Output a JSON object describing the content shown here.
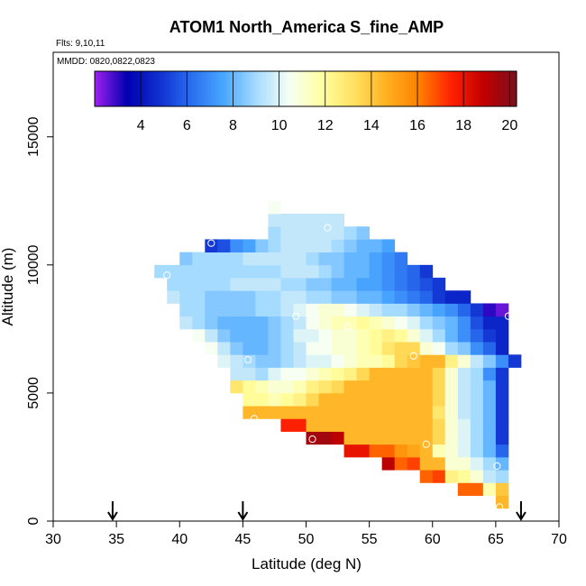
{
  "chart_data": {
    "type": "heatmap",
    "title": "ATOM1 North_America S_fine_AMP",
    "flights_label": "Flts: 9,10,11",
    "dates_label": "MMDD: 0820,0822,0823",
    "xlabel": "Latitude (deg N)",
    "ylabel": "Altitude (m)",
    "xlim": [
      30,
      70
    ],
    "ylim": [
      0,
      18300
    ],
    "x_ticks": [
      "30",
      "35",
      "40",
      "45",
      "50",
      "55",
      "60",
      "65",
      "70"
    ],
    "y_ticks": [
      "0",
      "5000",
      "10000",
      "15000"
    ],
    "colorbar": {
      "range": [
        2,
        20.3
      ],
      "ticks": [
        "4",
        "6",
        "8",
        "10",
        "12",
        "14",
        "16",
        "18",
        "20"
      ],
      "colors": [
        "#a020f0",
        "#0000b0",
        "#1030d0",
        "#2a70f0",
        "#4aa8ff",
        "#a8dcff",
        "#f6fff4",
        "#ffffa0",
        "#ffe060",
        "#ffb020",
        "#ff8000",
        "#ff2000",
        "#c00000",
        "#7a1020"
      ]
    },
    "cell_size": {
      "lat": 1.0,
      "alt": 500
    },
    "row_bottom_altitudes": [
      500,
      1000,
      1500,
      2000,
      2500,
      3000,
      3500,
      4000,
      4500,
      5000,
      5500,
      6000,
      6500,
      7000,
      7500,
      8000,
      8500,
      9000,
      9500,
      10000,
      10500,
      11000,
      11500,
      12000
    ],
    "rows": [
      {
        "lat_start": 65,
        "values": [
          14.5
        ]
      },
      {
        "lat_start": 62,
        "values": [
          16.5,
          16.5,
          11.6,
          14.0
        ]
      },
      {
        "lat_start": 59,
        "values": [
          16.5,
          17.0,
          12.5,
          12.0,
          11.0,
          9.5,
          9.0
        ]
      },
      {
        "lat_start": 56,
        "values": [
          19.0,
          16.5,
          17.0,
          14.5,
          14.5,
          11.0,
          11.0,
          10.0,
          9.0,
          8.0
        ]
      },
      {
        "lat_start": 53,
        "values": [
          18.0,
          18.0,
          16.5,
          16.5,
          15.5,
          15.0,
          14.5,
          11.5,
          11.0,
          10.0,
          9.0,
          8.0,
          6.0
        ]
      },
      {
        "lat_start": 50,
        "values": [
          19.5,
          19.5,
          19.0,
          14.5,
          14.5,
          14.5,
          14.5,
          14.5,
          14.5,
          14.5,
          13.5,
          11.0,
          10.0,
          9.0,
          8.0,
          5.0
        ]
      },
      {
        "lat_start": 48,
        "values": [
          17.5,
          17.5,
          14.5,
          14.5,
          14.5,
          14.5,
          14.5,
          14.5,
          14.5,
          14.5,
          14.5,
          14.5,
          13.5,
          11.0,
          10.0,
          9.0,
          8.0,
          5.0
        ]
      },
      {
        "lat_start": 45,
        "values": [
          14.5,
          14.5,
          14.5,
          14.5,
          14.5,
          14.5,
          14.5,
          14.5,
          14.5,
          14.5,
          14.5,
          14.5,
          14.5,
          14.5,
          14.5,
          13.0,
          11.0,
          9.5,
          9.0,
          8.0,
          5.0
        ]
      },
      {
        "lat_start": 45,
        "values": [
          12.0,
          12.0,
          11.5,
          12.0,
          12.5,
          13.5,
          14.5,
          14.5,
          14.5,
          14.5,
          14.5,
          14.5,
          14.5,
          14.5,
          14.5,
          13.5,
          11.0,
          9.5,
          9.0,
          8.0,
          5.0
        ]
      },
      {
        "lat_start": 44,
        "values": [
          13.0,
          12.0,
          11.5,
          11.0,
          11.0,
          11.5,
          12.5,
          13.0,
          13.5,
          14.5,
          14.5,
          14.5,
          14.5,
          14.5,
          14.5,
          14.5,
          13.5,
          11.0,
          9.5,
          9.0,
          8.0,
          5.0
        ]
      },
      {
        "lat_start": 44,
        "values": [
          9.5,
          9.5,
          9.0,
          10.0,
          10.5,
          10.5,
          11.0,
          11.5,
          12.0,
          12.5,
          13.5,
          14.5,
          14.5,
          14.5,
          14.5,
          14.5,
          13.5,
          11.0,
          9.5,
          9.0,
          7.0,
          5.0
        ]
      },
      {
        "lat_start": 43,
        "values": [
          10.0,
          9.5,
          9.0,
          8.5,
          8.5,
          9.0,
          9.5,
          10.0,
          10.0,
          10.5,
          11.0,
          11.5,
          11.5,
          12.0,
          13.5,
          14.0,
          14.5,
          14.5,
          12.5,
          11.0,
          9.5,
          8.5,
          7.0,
          5.0
        ]
      },
      {
        "lat_start": 42,
        "values": [
          10.5,
          9.5,
          8.5,
          8.0,
          8.0,
          8.5,
          9.0,
          9.5,
          10.5,
          10.5,
          11.0,
          11.0,
          11.5,
          12.0,
          13.0,
          13.5,
          13.5,
          11.0,
          10.5,
          9.0,
          8.5,
          7.0,
          6.0,
          4.5
        ]
      },
      {
        "lat_start": 41,
        "values": [
          10.5,
          9.5,
          8.5,
          8.0,
          8.0,
          8.0,
          8.5,
          9.0,
          10.0,
          10.0,
          10.5,
          11.0,
          11.0,
          11.5,
          12.0,
          12.5,
          12.0,
          11.0,
          10.0,
          9.0,
          8.0,
          7.0,
          6.0,
          5.0,
          4.5
        ]
      },
      {
        "lat_start": 40,
        "values": [
          9.5,
          9.0,
          8.5,
          8.0,
          8.0,
          8.0,
          8.0,
          8.5,
          9.0,
          9.5,
          10.5,
          11.0,
          11.5,
          11.5,
          12.0,
          11.5,
          11.0,
          10.5,
          10.0,
          9.0,
          8.5,
          8.0,
          7.0,
          5.5,
          4.5,
          4.5
        ]
      },
      {
        "lat_start": 40,
        "values": [
          9.0,
          9.0,
          8.5,
          8.5,
          8.5,
          8.5,
          9.0,
          9.0,
          9.5,
          10.0,
          10.5,
          11.0,
          11.0,
          10.5,
          10.0,
          9.5,
          9.0,
          9.0,
          8.5,
          8.0,
          7.5,
          7.0,
          6.0,
          5.0,
          3.0,
          2.5
        ]
      },
      {
        "lat_start": 39,
        "values": [
          9.5,
          9.0,
          9.0,
          8.5,
          8.5,
          8.5,
          8.5,
          9.0,
          9.0,
          9.5,
          9.5,
          9.0,
          9.0,
          8.5,
          8.5,
          8.0,
          8.0,
          7.5,
          7.0,
          6.5,
          6.0,
          5.0,
          4.5,
          4.5
        ]
      },
      {
        "lat_start": 39,
        "values": [
          9.0,
          9.0,
          9.0,
          9.0,
          9.0,
          9.5,
          9.5,
          9.5,
          9.5,
          9.0,
          9.0,
          8.5,
          8.5,
          8.0,
          8.0,
          7.5,
          7.5,
          7.0,
          6.5,
          6.0,
          5.5,
          5.0
        ]
      },
      {
        "lat_start": 38,
        "values": [
          9.0,
          9.0,
          9.0,
          9.0,
          9.0,
          9.0,
          9.0,
          9.0,
          9.0,
          9.0,
          9.5,
          9.5,
          9.5,
          9.0,
          8.5,
          8.0,
          8.0,
          7.5,
          7.0,
          6.5,
          6.0,
          5.0
        ]
      },
      {
        "lat_start": 40,
        "values": [
          8.5,
          9.0,
          9.0,
          9.0,
          9.0,
          9.5,
          9.5,
          9.5,
          9.5,
          9.5,
          9.0,
          8.5,
          8.5,
          8.0,
          8.0,
          7.5,
          7.0,
          6.5
        ]
      },
      {
        "lat_start": 42,
        "values": [
          5.0,
          5.5,
          7.0,
          7.5,
          8.5,
          9.0,
          9.5,
          9.5,
          9.5,
          9.5,
          9.0,
          8.5,
          8.0,
          8.0,
          7.5
        ]
      },
      {
        "lat_start": 47,
        "values": [
          9.0,
          9.5,
          9.5,
          9.5,
          9.5,
          9.5,
          9.0,
          8.5
        ]
      },
      {
        "lat_start": 47,
        "values": [
          9.5,
          9.5,
          9.5,
          9.5,
          9.5,
          9.5
        ]
      },
      {
        "lat_start": 47,
        "values": [
          10.5
        ]
      }
    ],
    "sample_points": [
      {
        "lat": 42.5,
        "alt": 10850
      },
      {
        "lat": 51.7,
        "alt": 11450
      },
      {
        "lat": 39.0,
        "alt": 9600
      },
      {
        "lat": 49.2,
        "alt": 8000
      },
      {
        "lat": 66.0,
        "alt": 8000
      },
      {
        "lat": 53.3,
        "alt": 7600
      },
      {
        "lat": 45.4,
        "alt": 6300
      },
      {
        "lat": 58.5,
        "alt": 6450
      },
      {
        "lat": 45.9,
        "alt": 4000
      },
      {
        "lat": 50.5,
        "alt": 3200
      },
      {
        "lat": 59.5,
        "alt": 3000
      },
      {
        "lat": 65.1,
        "alt": 2150
      },
      {
        "lat": 65.3,
        "alt": 550
      }
    ],
    "arrows_at_latitude": [
      34.7,
      45.0,
      67.0
    ]
  }
}
